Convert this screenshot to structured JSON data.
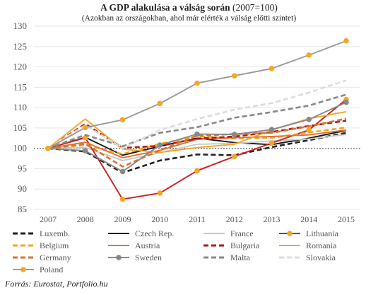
{
  "title_main": "A GDP alakulása a válság során",
  "title_suffix": "(2007=100)",
  "subtitle": "(Azokban az országokban, ahol már elérték a válság előtti szintet)",
  "source": "Forrás: Eurostat, Portfolio.hu",
  "chart_data": {
    "type": "line",
    "title": "A GDP alakulása a válság során (2007=100)",
    "subtitle": "(Azokban az országokban, ahol már elérték a válság előtti szintet)",
    "xlabel": "",
    "ylabel": "",
    "x": [
      "2007",
      "2008",
      "2009",
      "2010",
      "2011",
      "2012",
      "2013",
      "2014",
      "2015"
    ],
    "ylim": [
      85,
      130
    ],
    "yticks": [
      85,
      90,
      95,
      100,
      105,
      110,
      115,
      120,
      125,
      130
    ],
    "grid": "horizontal",
    "legend_position": "bottom",
    "series": [
      {
        "name": "Luxemb.",
        "color": "#222222",
        "style": "dashed",
        "values": [
          100,
          99.2,
          94,
          97,
          98.5,
          98.3,
          100.3,
          102,
          103.8
        ]
      },
      {
        "name": "Czech Rep.",
        "color": "#111111",
        "style": "solid",
        "values": [
          100,
          102.7,
          98.3,
          100.5,
          102.5,
          101.4,
          100.9,
          102.5,
          104.4
        ]
      },
      {
        "name": "France",
        "color": "#c8c8c8",
        "style": "solid",
        "values": [
          100,
          100.2,
          97,
          98.9,
          101,
          101.2,
          101.8,
          102.3,
          103.4
        ]
      },
      {
        "name": "Lithuania",
        "color": "#cc2020",
        "style": "solid",
        "marker": "circle",
        "marker_color": "#f5a623",
        "values": [
          100,
          102.6,
          87.5,
          89,
          94.5,
          98,
          101.3,
          104.5,
          112
        ]
      },
      {
        "name": "Belgium",
        "color": "#f5a623",
        "style": "dashed",
        "values": [
          100,
          100.8,
          98.6,
          101.1,
          103,
          102.4,
          102.6,
          103.9,
          105.1
        ]
      },
      {
        "name": "Austria",
        "color": "#e07030",
        "style": "solid",
        "values": [
          100,
          101.5,
          97.7,
          99.5,
          102.2,
          102.6,
          102.9,
          103.3,
          104.5
        ]
      },
      {
        "name": "Bulgaria",
        "color": "#b01818",
        "style": "dashed",
        "values": [
          100,
          106,
          100.1,
          100.6,
          102.4,
          102.9,
          104,
          105.5,
          106.8
        ]
      },
      {
        "name": "Romania",
        "color": "#f5a623",
        "style": "solid",
        "values": [
          100,
          107.2,
          99.8,
          99,
          100.2,
          101,
          104.5,
          107.3,
          109
        ]
      },
      {
        "name": "Germany",
        "color": "#e07030",
        "style": "dashed",
        "values": [
          100,
          101.1,
          95.5,
          99.5,
          103.1,
          103.5,
          103.8,
          105.4,
          107.3
        ]
      },
      {
        "name": "Sweden",
        "color": "#888888",
        "style": "solid",
        "marker": "circle",
        "marker_color": "#888888",
        "values": [
          100,
          99.4,
          94.3,
          100.8,
          103.5,
          103.4,
          104.6,
          107.1,
          111.3
        ]
      },
      {
        "name": "Malta",
        "color": "#888888",
        "style": "dashed",
        "values": [
          100,
          103.3,
          100.5,
          103.8,
          105.2,
          107.5,
          108.9,
          110.5,
          113.2
        ]
      },
      {
        "name": "Slovakia",
        "color": "#dcdcdc",
        "style": "dashed",
        "values": [
          100,
          105.7,
          100,
          104.5,
          107.2,
          109.5,
          111.1,
          113.7,
          116.7
        ]
      },
      {
        "name": "Poland",
        "color": "#999999",
        "style": "solid",
        "marker": "circle",
        "marker_color": "#f5a623",
        "values": [
          100,
          105.1,
          107,
          111,
          116,
          117.8,
          119.6,
          122.9,
          126.4
        ]
      }
    ]
  }
}
